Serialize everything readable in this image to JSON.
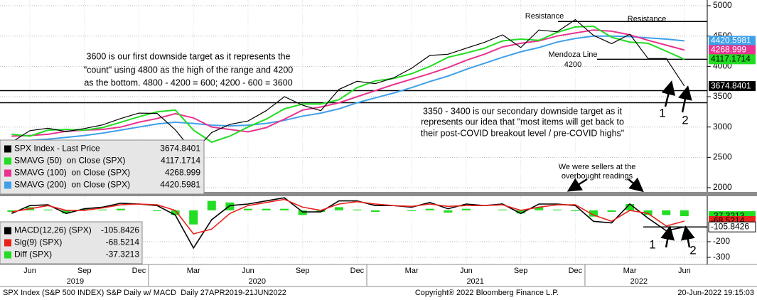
{
  "chart_data": [
    {
      "type": "line",
      "categories": [
        null,
        "Jun",
        null,
        null,
        "Sep",
        null,
        null,
        "Dec",
        null,
        null,
        "Mar",
        null,
        null,
        "Jun",
        null,
        null,
        "Sep",
        null,
        null,
        "Dec",
        null,
        null,
        "Mar",
        null,
        null,
        "Jun",
        null,
        null,
        "Sep",
        null,
        null,
        "Dec",
        null,
        null,
        "Mar",
        null,
        null,
        "Jun"
      ],
      "years": [
        "2019",
        "2020",
        "2021",
        "2022"
      ],
      "ylim": [
        1930,
        5094
      ],
      "yticks": [
        2000,
        2500,
        3000,
        3500,
        4000,
        4500,
        5000
      ],
      "grid": true,
      "hlines": [
        4740,
        4117,
        3600,
        3400
      ],
      "series": [
        {
          "name": "SPX Index - Last Price",
          "color": "#000000",
          "values": [
            2750,
            2940,
            2980,
            2925,
            2975,
            3035,
            3140,
            3230,
            3225,
            2955,
            2585,
            2910,
            3045,
            3100,
            3270,
            3500,
            3360,
            3270,
            3620,
            3755,
            3715,
            3810,
            3970,
            4180,
            4200,
            4300,
            4395,
            4520,
            4310,
            4600,
            4570,
            4770,
            4510,
            4375,
            4530,
            4130,
            4130,
            3674.8401
          ]
        },
        {
          "name": "SMAVG (50)  on Close (SPX)",
          "color": "#22dd22",
          "values": [
            2880,
            2850,
            2950,
            2960,
            2950,
            2990,
            3080,
            3170,
            3250,
            3280,
            2950,
            2750,
            2850,
            3000,
            3130,
            3300,
            3380,
            3380,
            3450,
            3650,
            3760,
            3800,
            3880,
            4000,
            4150,
            4220,
            4300,
            4420,
            4450,
            4430,
            4560,
            4650,
            4660,
            4480,
            4400,
            4380,
            4250,
            4117.1714
          ]
        },
        {
          "name": "SMAVG (100)  on Close (SPX)",
          "color": "#e8338f",
          "values": [
            2850,
            2860,
            2880,
            2930,
            2950,
            2960,
            3000,
            3080,
            3140,
            3220,
            3150,
            3000,
            2960,
            2920,
            2990,
            3130,
            3280,
            3330,
            3400,
            3500,
            3600,
            3700,
            3790,
            3880,
            3980,
            4100,
            4200,
            4320,
            4380,
            4420,
            4500,
            4550,
            4600,
            4580,
            4520,
            4430,
            4350,
            4268.999
          ]
        },
        {
          "name": "SMAVG (200)  on Close (SPX)",
          "color": "#3fa0ea",
          "values": [
            2770,
            2780,
            2800,
            2830,
            2860,
            2900,
            2950,
            3000,
            3050,
            3080,
            3060,
            3030,
            3020,
            3030,
            3060,
            3110,
            3180,
            3230,
            3300,
            3400,
            3480,
            3560,
            3650,
            3750,
            3840,
            3950,
            4050,
            4150,
            4240,
            4310,
            4400,
            4460,
            4500,
            4500,
            4490,
            4470,
            4450,
            4420.5981
          ]
        }
      ],
      "annotations": [
        "3600 is our first downside target as it represents the",
        "\"count\" using 4800 as the high of the range and 4200",
        "as the bottom. 4800 - 4200 = 600; 4200 - 600 = 3600",
        "3350 - 3400 is our secondary downside target as it",
        "represents our idea that \"most items will get back to",
        "their post-COVID breakout level / pre-COVID highs\"",
        "Resistance",
        "Resistance",
        "Mendoza Line",
        "4200",
        "1",
        "2"
      ]
    },
    {
      "type": "macd",
      "ylim": [
        -336,
        90
      ],
      "yticks": [
        -200,
        -300
      ],
      "grid": true,
      "hlines": [
        -106
      ],
      "series": [
        {
          "name": "MACD(12,26) (SPX)",
          "color": "#000000",
          "style": "line",
          "values": [
            -20,
            30,
            35,
            -20,
            10,
            20,
            45,
            40,
            30,
            -30,
            -240,
            -60,
            30,
            40,
            60,
            80,
            -10,
            -10,
            60,
            60,
            30,
            30,
            20,
            50,
            10,
            40,
            30,
            40,
            -20,
            40,
            40,
            30,
            -70,
            -80,
            40,
            -50,
            -130,
            -105.8426
          ]
        },
        {
          "name": "Sig(9) (SPX)",
          "color": "#e8221b",
          "style": "line",
          "values": [
            -10,
            10,
            30,
            0,
            0,
            15,
            35,
            40,
            35,
            0,
            -150,
            -120,
            -20,
            30,
            50,
            70,
            20,
            0,
            40,
            55,
            40,
            30,
            25,
            40,
            25,
            30,
            30,
            35,
            0,
            20,
            35,
            35,
            -30,
            -70,
            0,
            -20,
            -100,
            -68.5214
          ]
        },
        {
          "name": "Diff (SPX)",
          "color": "#22dd22",
          "style": "bar",
          "values": [
            -10,
            20,
            5,
            -20,
            10,
            5,
            10,
            0,
            -5,
            -30,
            -90,
            60,
            50,
            10,
            10,
            10,
            -30,
            -10,
            20,
            5,
            -10,
            0,
            -5,
            10,
            -15,
            10,
            0,
            5,
            -20,
            20,
            5,
            -5,
            -40,
            -10,
            40,
            -30,
            -30,
            -37.3213
          ]
        }
      ],
      "annotations": [
        "We were sellers at the",
        "overbought readings",
        "1",
        "2"
      ]
    }
  ],
  "footer": {
    "left": "SPX Index (S&P 500 INDEX) S&P Daily w/ MACD  Daily 27APR2019-21JUN2022",
    "center": "Copyright® 2022 Bloomberg Finance L.P.",
    "right": "20-Jun-2022 19:15:03"
  }
}
